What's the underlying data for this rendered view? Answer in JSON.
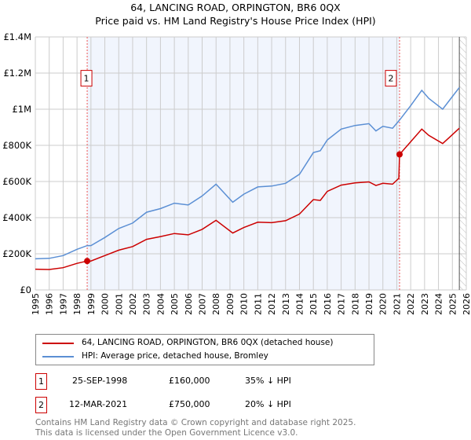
{
  "chart_data": {
    "type": "line",
    "title": "64, LANCING ROAD, ORPINGTON, BR6 0QX",
    "subtitle": "Price paid vs. HM Land Registry's House Price Index (HPI)",
    "xlim": [
      1995,
      2026
    ],
    "ylim": [
      0,
      1400000
    ],
    "x_ticks": [
      "1995",
      "1996",
      "1997",
      "1998",
      "1999",
      "2000",
      "2001",
      "2002",
      "2003",
      "2004",
      "2005",
      "2006",
      "2007",
      "2008",
      "2009",
      "2010",
      "2011",
      "2012",
      "2013",
      "2014",
      "2015",
      "2016",
      "2017",
      "2018",
      "2019",
      "2020",
      "2021",
      "2022",
      "2023",
      "2024",
      "2025",
      "2026"
    ],
    "y_ticks": [
      {
        "v": 0,
        "label": "£0"
      },
      {
        "v": 200000,
        "label": "£200K"
      },
      {
        "v": 400000,
        "label": "£400K"
      },
      {
        "v": 600000,
        "label": "£600K"
      },
      {
        "v": 800000,
        "label": "£800K"
      },
      {
        "v": 1000000,
        "label": "£1M"
      },
      {
        "v": 1200000,
        "label": "£1.2M"
      },
      {
        "v": 1400000,
        "label": "£1.4M"
      }
    ],
    "grid": true,
    "series": [
      {
        "name": "64, LANCING ROAD, ORPINGTON, BR6 0QX (detached house)",
        "color": "#cc0000",
        "x": [
          1995,
          1996,
          1997,
          1998,
          1998.73,
          1999,
          2000,
          2001,
          2002,
          2003,
          2004,
          2005,
          2006,
          2007,
          2008,
          2009.2,
          2010,
          2011,
          2012,
          2013,
          2014,
          2015,
          2015.5,
          2016,
          2017,
          2018,
          2019,
          2019.5,
          2020,
          2020.7,
          2021.15,
          2021.2,
          2022,
          2022.8,
          2023.3,
          2024.3,
          2024.8,
          2025.5
        ],
        "y": [
          115000,
          113000,
          123000,
          147000,
          160000,
          160000,
          190000,
          220000,
          240000,
          280000,
          295000,
          312000,
          305000,
          335000,
          385000,
          315000,
          345000,
          375000,
          372000,
          383000,
          420000,
          500000,
          495000,
          545000,
          580000,
          592000,
          598000,
          578000,
          590000,
          585000,
          618000,
          750000,
          820000,
          890000,
          855000,
          810000,
          845000,
          895000
        ]
      },
      {
        "name": "HPI: Average price, detached house, Bromley",
        "color": "#5b8fd4",
        "x": [
          1995,
          1996,
          1997,
          1998,
          1998.73,
          1999,
          2000,
          2001,
          2002,
          2003,
          2004,
          2005,
          2006,
          2007,
          2008,
          2009.2,
          2010,
          2011,
          2012,
          2013,
          2014,
          2015,
          2015.5,
          2016,
          2017,
          2018,
          2019,
          2019.5,
          2020,
          2020.7,
          2021.2,
          2022,
          2022.8,
          2023.3,
          2024.3,
          2024.8,
          2025.5
        ],
        "y": [
          172000,
          175000,
          190000,
          225000,
          245000,
          245000,
          290000,
          340000,
          370000,
          430000,
          450000,
          480000,
          470000,
          520000,
          585000,
          485000,
          530000,
          570000,
          575000,
          590000,
          640000,
          760000,
          770000,
          830000,
          890000,
          910000,
          920000,
          880000,
          905000,
          895000,
          940000,
          1020000,
          1105000,
          1060000,
          1000000,
          1050000,
          1120000
        ]
      }
    ],
    "sales": [
      {
        "id": "1",
        "x": 1998.73,
        "y": 160000,
        "date": "25-SEP-1998",
        "price": "£160,000",
        "hpi": "35% ↓ HPI"
      },
      {
        "id": "2",
        "x": 2021.2,
        "y": 750000,
        "date": "12-MAR-2021",
        "price": "£750,000",
        "hpi": "20% ↓ HPI"
      }
    ],
    "forecast_from": 2025.5
  },
  "footer": [
    "Contains HM Land Registry data © Crown copyright and database right 2025.",
    "This data is licensed under the Open Government Licence v3.0."
  ]
}
